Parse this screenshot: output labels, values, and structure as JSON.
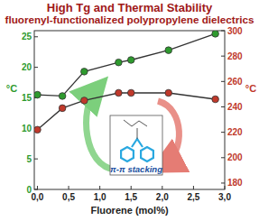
{
  "chart_data": {
    "type": "line",
    "title": "High Tg and Thermal Stability",
    "subtitle": "fluorenyl-functionalized polypropylene dielectrics",
    "xlabel": "Fluorene (mol%)",
    "ylabel": "°C",
    "y2label": "°C",
    "annotation": "π-π stacking",
    "x": [
      0.0,
      0.4,
      0.75,
      1.3,
      1.5,
      2.1,
      2.85
    ],
    "series": [
      {
        "color": "#2e9a2e",
        "marker": "circle",
        "line_style": "solid",
        "values": [
          15.5,
          15.3,
          19.3,
          20.8,
          21.2,
          22.8,
          25.5
        ]
      },
      {
        "color": "#c0392b",
        "marker": "circle",
        "line_style": "solid",
        "axis": "y2",
        "values": [
          222,
          239,
          245,
          251,
          251,
          251,
          246
        ]
      }
    ],
    "xlim": [
      -0.05,
      3.0
    ],
    "xticks": [
      {
        "value": 0,
        "label": "0,0"
      },
      {
        "value": 0.5,
        "label": "0,5"
      },
      {
        "value": 1,
        "label": "1,0"
      },
      {
        "value": 1.5,
        "label": "1,5"
      },
      {
        "value": 2,
        "label": "2,0"
      },
      {
        "value": 2.5,
        "label": "2,5"
      },
      {
        "value": 3,
        "label": "3,0"
      }
    ],
    "ylim": [
      0,
      26
    ],
    "yticks": [
      0,
      5,
      10,
      15,
      20,
      25
    ],
    "y2lim": [
      175,
      300
    ],
    "y2ticks": [
      180,
      200,
      220,
      240,
      260,
      280,
      300
    ],
    "grid": false
  }
}
